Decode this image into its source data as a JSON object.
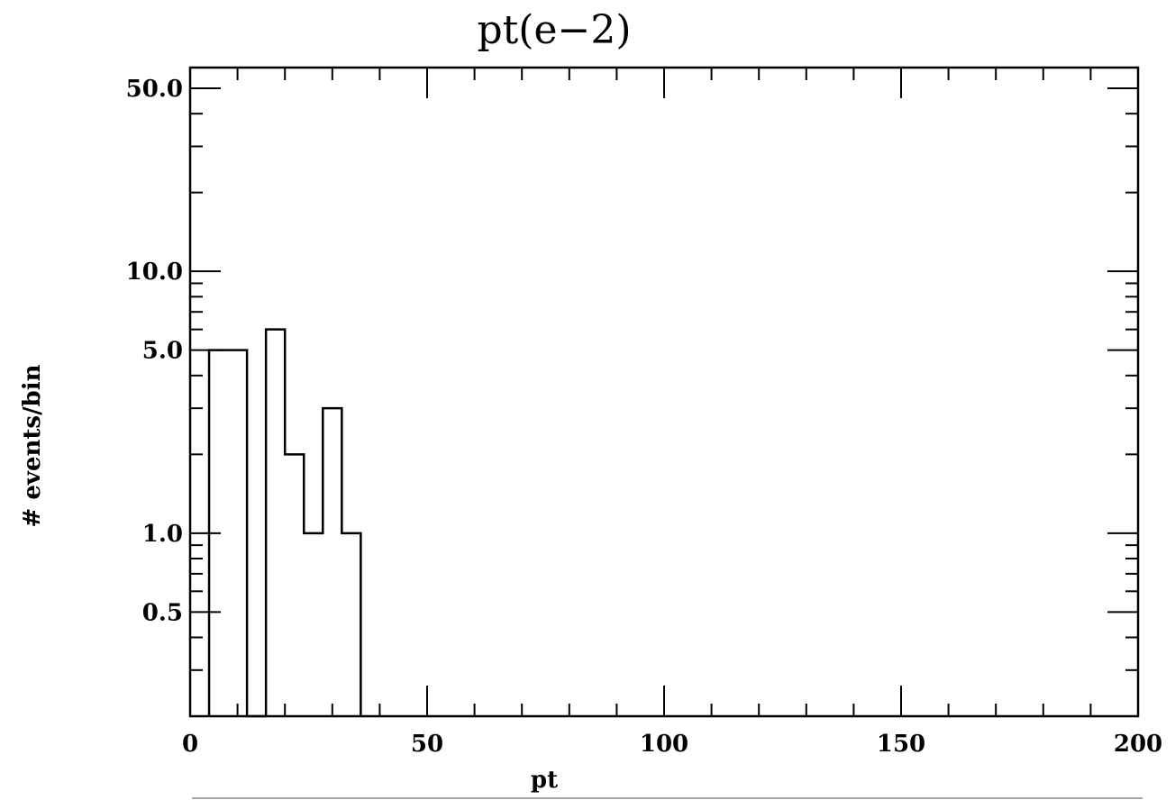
{
  "chart_data": {
    "type": "histogram",
    "title": "pt(e−2)",
    "xlabel": "pt",
    "ylabel": "# events/bin",
    "xlim": [
      0,
      200
    ],
    "ylim": [
      0.2,
      60
    ],
    "yscale": "log",
    "grid": false,
    "x_ticks": [
      {
        "value": 0,
        "label": "0"
      },
      {
        "value": 50,
        "label": "50"
      },
      {
        "value": 100,
        "label": "100"
      },
      {
        "value": 150,
        "label": "150"
      },
      {
        "value": 200,
        "label": "200"
      }
    ],
    "y_ticks": [
      {
        "value": 0.5,
        "label": "0.5"
      },
      {
        "value": 1,
        "label": "1.0"
      },
      {
        "value": 5,
        "label": "5.0"
      },
      {
        "value": 10,
        "label": "10.0"
      },
      {
        "value": 50,
        "label": "50.0"
      }
    ],
    "bins": [
      {
        "x0": 4,
        "x1": 8,
        "value": 5
      },
      {
        "x0": 8,
        "x1": 12,
        "value": 5
      },
      {
        "x0": 12,
        "x1": 16,
        "value": 0
      },
      {
        "x0": 16,
        "x1": 20,
        "value": 6
      },
      {
        "x0": 20,
        "x1": 24,
        "value": 2
      },
      {
        "x0": 24,
        "x1": 28,
        "value": 1
      },
      {
        "x0": 28,
        "x1": 32,
        "value": 3
      },
      {
        "x0": 32,
        "x1": 36,
        "value": 1
      }
    ]
  }
}
